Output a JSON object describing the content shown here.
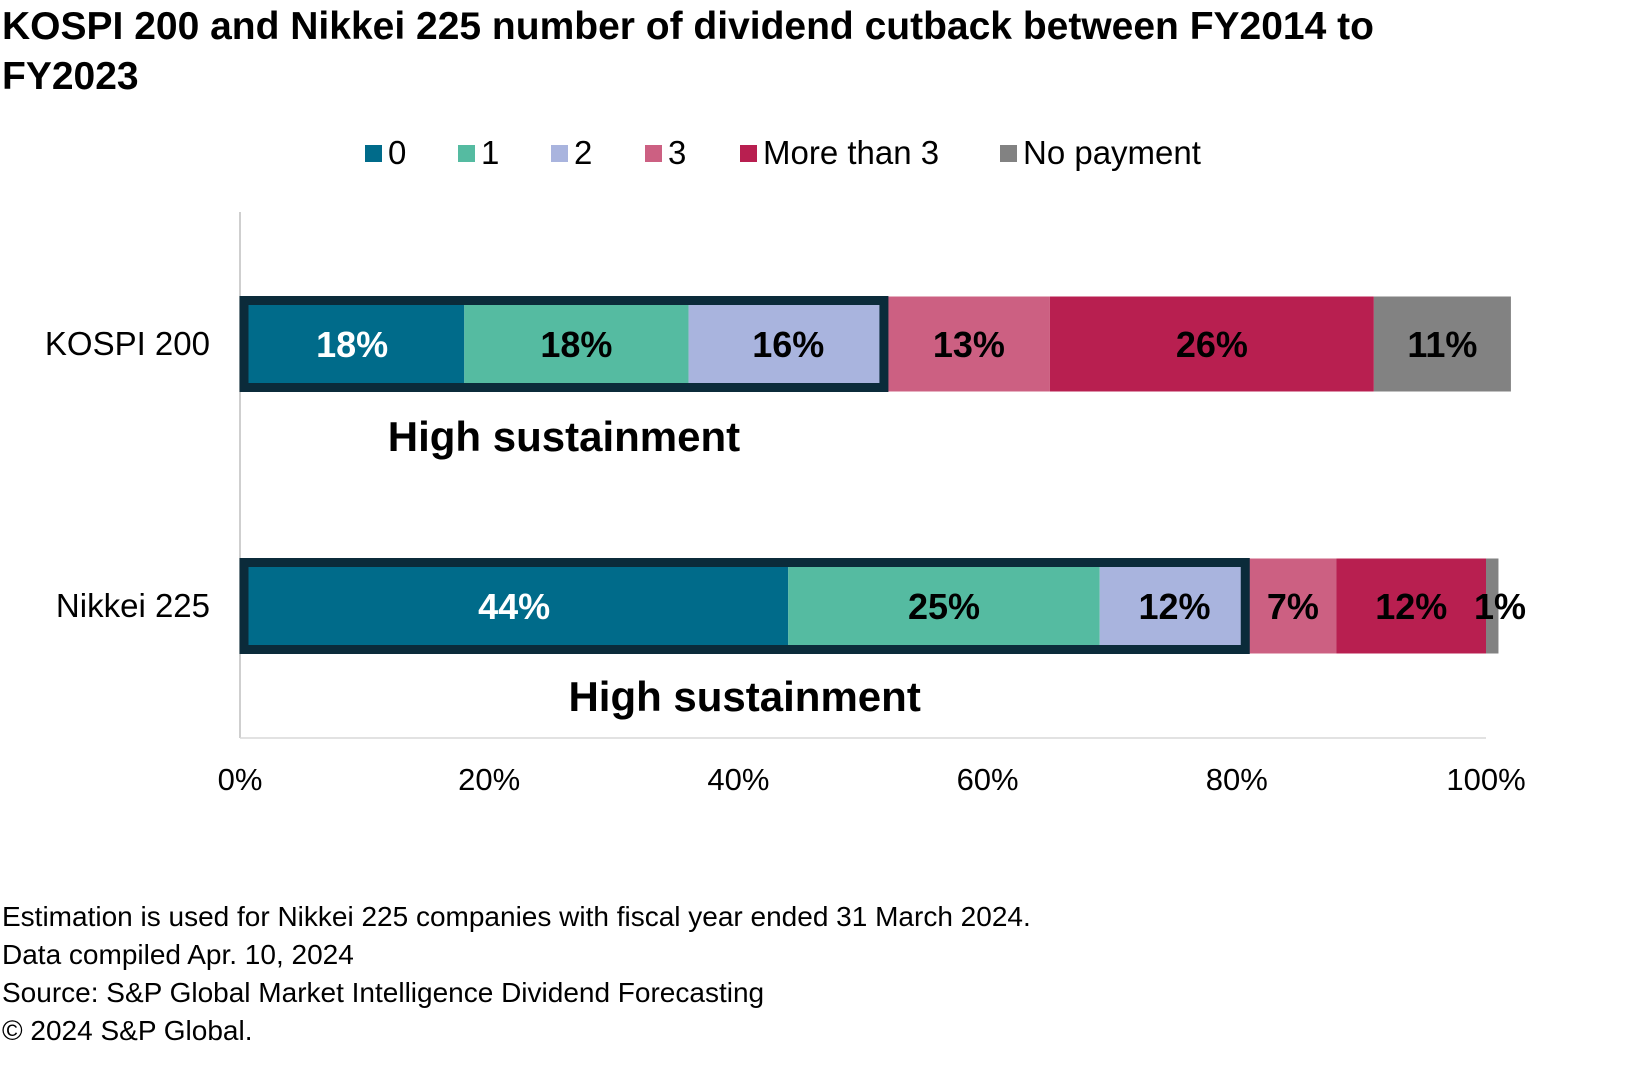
{
  "title": "KOSPI 200 and Nikkei 225 number of dividend cutback between FY2014 to FY2023",
  "chart_data": {
    "type": "bar",
    "orientation": "horizontal",
    "stacked": "percent",
    "categories": [
      "KOSPI 200",
      "Nikkei 225"
    ],
    "series": [
      {
        "name": "0",
        "color": "#006B8A",
        "values": [
          18,
          44
        ],
        "labels": [
          "18%",
          "44%"
        ],
        "label_color": "#ffffff"
      },
      {
        "name": "1",
        "color": "#55BBA1",
        "values": [
          18,
          25
        ],
        "labels": [
          "18%",
          "25%"
        ],
        "label_color": "#000000"
      },
      {
        "name": "2",
        "color": "#A9B4DE",
        "values": [
          16,
          12
        ],
        "labels": [
          "16%",
          "12%"
        ],
        "label_color": "#000000"
      },
      {
        "name": "3",
        "color": "#CC6082",
        "values": [
          13,
          7
        ],
        "labels": [
          "13%",
          "7%"
        ],
        "label_color": "#000000"
      },
      {
        "name": "More than 3",
        "color": "#B81F50",
        "values": [
          26,
          12
        ],
        "labels": [
          "26%",
          "12%"
        ],
        "label_color": "#000000"
      },
      {
        "name": "No payment",
        "color": "#828282",
        "values": [
          11,
          1
        ],
        "labels": [
          "11%",
          "1%"
        ],
        "label_color": "#000000"
      }
    ],
    "xlim": [
      0,
      100
    ],
    "xticks": [
      "0%",
      "20%",
      "40%",
      "60%",
      "80%",
      "100%"
    ],
    "legend_position": "top",
    "annotations": [
      {
        "category": "KOSPI 200",
        "text": "High sustainment",
        "spans_series": [
          "0",
          "1",
          "2"
        ]
      },
      {
        "category": "Nikkei 225",
        "text": "High sustainment",
        "spans_series": [
          "0",
          "1",
          "2"
        ]
      }
    ],
    "highlight_color": "#0B2B3A"
  },
  "footnotes": [
    "Estimation is used for Nikkei 225 companies with fiscal year ended 31 March 2024.",
    "Data compiled Apr. 10, 2024",
    "Source: S&P Global Market Intelligence Dividend Forecasting",
    "© 2024 S&P Global."
  ]
}
